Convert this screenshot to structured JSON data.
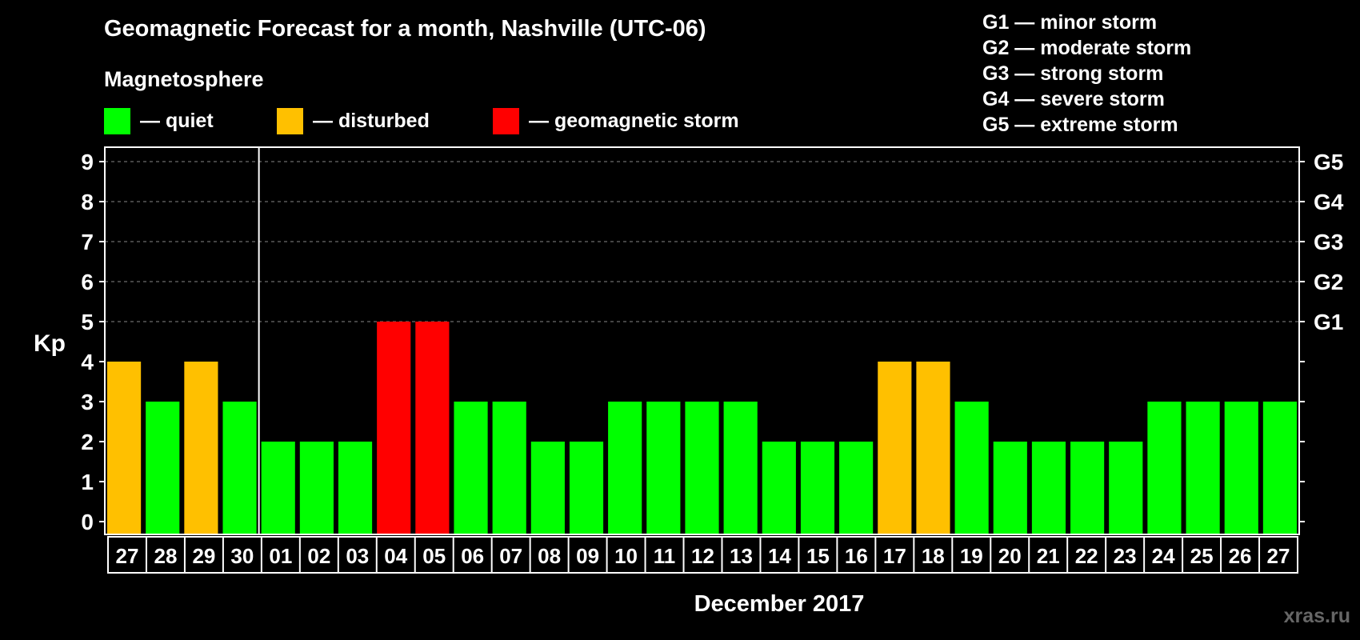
{
  "title": "Geomagnetic Forecast for a month, Nashville (UTC-06)",
  "magnetosphere_label": "Magnetosphere",
  "legend": [
    {
      "label": "— quiet",
      "color": "#00ff00"
    },
    {
      "label": "— disturbed",
      "color": "#ffc000"
    },
    {
      "label": "— geomagnetic storm",
      "color": "#ff0000"
    }
  ],
  "g_scale": [
    "G1 — minor storm",
    "G2 — moderate storm",
    "G3 — strong storm",
    "G4 — severe storm",
    "G5 — extreme storm"
  ],
  "watermark": "xras.ru",
  "chart_data": {
    "type": "bar",
    "ylabel": "Kp",
    "xlabel": "December 2017",
    "ylim": [
      0,
      9
    ],
    "yticks": [
      "0",
      "1",
      "2",
      "3",
      "4",
      "5",
      "6",
      "7",
      "8",
      "9"
    ],
    "right_axis_labels": [
      {
        "value": 5,
        "label": "G1"
      },
      {
        "value": 6,
        "label": "G2"
      },
      {
        "value": 7,
        "label": "G3"
      },
      {
        "value": 8,
        "label": "G4"
      },
      {
        "value": 9,
        "label": "G5"
      }
    ],
    "grid": true,
    "month_separator_after_index": 3,
    "categories": [
      "27",
      "28",
      "29",
      "30",
      "01",
      "02",
      "03",
      "04",
      "05",
      "06",
      "07",
      "08",
      "09",
      "10",
      "11",
      "12",
      "13",
      "14",
      "15",
      "16",
      "17",
      "18",
      "19",
      "20",
      "21",
      "22",
      "23",
      "24",
      "25",
      "26",
      "27"
    ],
    "values": [
      4,
      3,
      4,
      3,
      2,
      2,
      2,
      5,
      5,
      3,
      3,
      2,
      2,
      3,
      3,
      3,
      3,
      2,
      2,
      2,
      4,
      4,
      3,
      2,
      2,
      2,
      2,
      3,
      3,
      3,
      3
    ],
    "colors": {
      "quiet": "#00ff00",
      "disturbed": "#ffc000",
      "storm": "#ff0000"
    }
  }
}
